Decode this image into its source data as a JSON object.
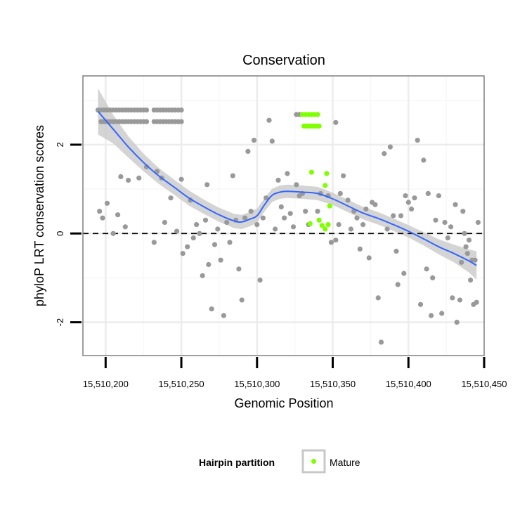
{
  "chart_data": {
    "type": "scatter",
    "title": "Conservation",
    "xlabel": "Genomic Position",
    "ylabel": "phyloP LRT conservation scores",
    "xlim": [
      15510185,
      15510450
    ],
    "ylim": [
      -2.75,
      3.55
    ],
    "xticks": [
      15510200,
      15510250,
      15510300,
      15510350,
      15510400,
      15510450
    ],
    "xtick_labels": [
      "15,510,200",
      "15,510,250",
      "15,510,300",
      "15,510,350",
      "15,510,400",
      "15,510,450"
    ],
    "yticks": [
      -2,
      0,
      2
    ],
    "ytick_labels": [
      "-2",
      "0",
      "2"
    ],
    "reference_line": {
      "y": 0,
      "style": "dashed"
    },
    "grid": true,
    "colors": {
      "other": "#999999",
      "mature": "#7fff00",
      "smooth": "#3366ff",
      "band": "#cccccc",
      "panel_border": "#7f7f7f"
    },
    "legend": {
      "title": "Hairpin partition",
      "position": "bottom",
      "entries": [
        {
          "label": "Mature",
          "color": "#7fff00"
        }
      ]
    },
    "series": [
      {
        "name": "Other",
        "color": "#999999",
        "points": [
          [
            15510195,
            2.78
          ],
          [
            15510197,
            2.78
          ],
          [
            15510199,
            2.78
          ],
          [
            15510201,
            2.78
          ],
          [
            15510203,
            2.78
          ],
          [
            15510205,
            2.78
          ],
          [
            15510207,
            2.78
          ],
          [
            15510209,
            2.78
          ],
          [
            15510211,
            2.78
          ],
          [
            15510213,
            2.78
          ],
          [
            15510215,
            2.78
          ],
          [
            15510217,
            2.78
          ],
          [
            15510219,
            2.78
          ],
          [
            15510221,
            2.78
          ],
          [
            15510223,
            2.78
          ],
          [
            15510225,
            2.78
          ],
          [
            15510227,
            2.78
          ],
          [
            15510232,
            2.78
          ],
          [
            15510234,
            2.78
          ],
          [
            15510236,
            2.78
          ],
          [
            15510238,
            2.78
          ],
          [
            15510240,
            2.78
          ],
          [
            15510242,
            2.78
          ],
          [
            15510244,
            2.78
          ],
          [
            15510246,
            2.78
          ],
          [
            15510248,
            2.78
          ],
          [
            15510250,
            2.78
          ],
          [
            15510197,
            2.52
          ],
          [
            15510199,
            2.52
          ],
          [
            15510201,
            2.52
          ],
          [
            15510203,
            2.52
          ],
          [
            15510205,
            2.52
          ],
          [
            15510207,
            2.52
          ],
          [
            15510209,
            2.52
          ],
          [
            15510211,
            2.52
          ],
          [
            15510213,
            2.52
          ],
          [
            15510215,
            2.52
          ],
          [
            15510217,
            2.52
          ],
          [
            15510219,
            2.52
          ],
          [
            15510221,
            2.52
          ],
          [
            15510223,
            2.52
          ],
          [
            15510225,
            2.52
          ],
          [
            15510227,
            2.52
          ],
          [
            15510232,
            2.52
          ],
          [
            15510234,
            2.52
          ],
          [
            15510236,
            2.52
          ],
          [
            15510238,
            2.52
          ],
          [
            15510240,
            2.52
          ],
          [
            15510242,
            2.52
          ],
          [
            15510244,
            2.52
          ],
          [
            15510246,
            2.52
          ],
          [
            15510248,
            2.52
          ],
          [
            15510250,
            2.52
          ],
          [
            15510326,
            2.68
          ],
          [
            15510328,
            2.68
          ],
          [
            15510352,
            2.5
          ],
          [
            15510196,
            0.5
          ],
          [
            15510198,
            0.35
          ],
          [
            15510201,
            0.68
          ],
          [
            15510205,
            0.0
          ],
          [
            15510208,
            0.42
          ],
          [
            15510210,
            1.28
          ],
          [
            15510213,
            0.15
          ],
          [
            15510215,
            1.2
          ],
          [
            15510222,
            1.25
          ],
          [
            15510227,
            1.5
          ],
          [
            15510232,
            -0.2
          ],
          [
            15510234,
            1.4
          ],
          [
            15510237,
            1.25
          ],
          [
            15510239,
            0.25
          ],
          [
            15510243,
            0.8
          ],
          [
            15510247,
            0.05
          ],
          [
            15510250,
            1.22
          ],
          [
            15510251,
            -0.45
          ],
          [
            15510254,
            -0.3
          ],
          [
            15510256,
            0.75
          ],
          [
            15510258,
            -0.1
          ],
          [
            15510260,
            0.2
          ],
          [
            15510262,
            0.0
          ],
          [
            15510264,
            -0.95
          ],
          [
            15510266,
            0.3
          ],
          [
            15510267,
            1.1
          ],
          [
            15510268,
            -0.7
          ],
          [
            15510270,
            -1.7
          ],
          [
            15510272,
            -0.25
          ],
          [
            15510274,
            0.1
          ],
          [
            15510276,
            -0.6
          ],
          [
            15510278,
            -1.85
          ],
          [
            15510280,
            0.25
          ],
          [
            15510282,
            -0.2
          ],
          [
            15510284,
            1.3
          ],
          [
            15510286,
            0.3
          ],
          [
            15510288,
            -0.8
          ],
          [
            15510290,
            -1.5
          ],
          [
            15510292,
            0.35
          ],
          [
            15510294,
            1.85
          ],
          [
            15510296,
            0.5
          ],
          [
            15510298,
            2.1
          ],
          [
            15510300,
            0.2
          ],
          [
            15510302,
            -1.05
          ],
          [
            15510304,
            0.35
          ],
          [
            15510306,
            0.8
          ],
          [
            15510308,
            2.55
          ],
          [
            15510310,
            2.08
          ],
          [
            15510312,
            0.1
          ],
          [
            15510314,
            1.2
          ],
          [
            15510316,
            0.6
          ],
          [
            15510318,
            0.35
          ],
          [
            15510320,
            1.35
          ],
          [
            15510322,
            0.45
          ],
          [
            15510324,
            0.15
          ],
          [
            15510326,
            1.1
          ],
          [
            15510328,
            0.85
          ],
          [
            15510330,
            0.9
          ],
          [
            15510332,
            0.5
          ],
          [
            15510334,
            0.2
          ],
          [
            15510340,
            0.5
          ],
          [
            15510342,
            0.9
          ],
          [
            15510347,
            0.85
          ],
          [
            15510349,
            -0.2
          ],
          [
            15510352,
            -0.15
          ],
          [
            15510354,
            0.2
          ],
          [
            15510355,
            0.9
          ],
          [
            15510357,
            1.3
          ],
          [
            15510360,
            0.75
          ],
          [
            15510362,
            0.1
          ],
          [
            15510364,
            0.5
          ],
          [
            15510366,
            0.35
          ],
          [
            15510368,
            -0.35
          ],
          [
            15510370,
            0.2
          ],
          [
            15510372,
            0.55
          ],
          [
            15510374,
            -0.55
          ],
          [
            15510376,
            0.7
          ],
          [
            15510378,
            0.65
          ],
          [
            15510380,
            -1.45
          ],
          [
            15510382,
            -2.45
          ],
          [
            15510384,
            1.8
          ],
          [
            15510386,
            0.1
          ],
          [
            15510388,
            1.95
          ],
          [
            15510390,
            0.4
          ],
          [
            15510392,
            -0.4
          ],
          [
            15510393,
            -1.15
          ],
          [
            15510395,
            0.4
          ],
          [
            15510397,
            -0.9
          ],
          [
            15510398,
            0.85
          ],
          [
            15510400,
            0.7
          ],
          [
            15510402,
            0.55
          ],
          [
            15510404,
            0.8
          ],
          [
            15510406,
            2.1
          ],
          [
            15510408,
            -1.6
          ],
          [
            15510410,
            1.65
          ],
          [
            15510412,
            -0.8
          ],
          [
            15510413,
            0.9
          ],
          [
            15510415,
            -1.85
          ],
          [
            15510416,
            -1.0
          ],
          [
            15510418,
            0.3
          ],
          [
            15510420,
            0.85
          ],
          [
            15510422,
            -1.8
          ],
          [
            15510424,
            0.25
          ],
          [
            15510426,
            -0.1
          ],
          [
            15510428,
            0.15
          ],
          [
            15510429,
            -1.45
          ],
          [
            15510431,
            0.65
          ],
          [
            15510432,
            -2.0
          ],
          [
            15510434,
            -1.5
          ],
          [
            15510436,
            0.5
          ],
          [
            15510437,
            0.0
          ],
          [
            15510439,
            -0.45
          ],
          [
            15510440,
            -0.15
          ],
          [
            15510441,
            -1.05
          ],
          [
            15510443,
            -1.6
          ],
          [
            15510444,
            -0.6
          ],
          [
            15510446,
            0.25
          ],
          [
            15510445,
            -1.55
          ],
          [
            15510442,
            -0.6
          ],
          [
            15510438,
            -0.3
          ],
          [
            15510435,
            -0.65
          ]
        ]
      },
      {
        "name": "Mature",
        "color": "#7fff00",
        "points": [
          [
            15510330,
            2.68
          ],
          [
            15510332,
            2.68
          ],
          [
            15510334,
            2.68
          ],
          [
            15510336,
            2.68
          ],
          [
            15510338,
            2.68
          ],
          [
            15510340,
            2.68
          ],
          [
            15510331,
            2.42
          ],
          [
            15510333,
            2.42
          ],
          [
            15510335,
            2.42
          ],
          [
            15510337,
            2.42
          ],
          [
            15510339,
            2.42
          ],
          [
            15510341,
            2.42
          ],
          [
            15510336,
            1.38
          ],
          [
            15510346,
            1.35
          ],
          [
            15510345,
            1.08
          ],
          [
            15510348,
            0.62
          ],
          [
            15510335,
            0.22
          ],
          [
            15510341,
            0.3
          ],
          [
            15510343,
            0.18
          ],
          [
            15510345,
            0.1
          ],
          [
            15510347,
            0.2
          ]
        ]
      }
    ],
    "smooth": {
      "x": [
        15510195,
        15510205,
        15510215,
        15510225,
        15510235,
        15510245,
        15510255,
        15510265,
        15510275,
        15510285,
        15510290,
        15510295,
        15510300,
        15510305,
        15510310,
        15510315,
        15510320,
        15510330,
        15510340,
        15510350,
        15510360,
        15510370,
        15510380,
        15510390,
        15510400,
        15510410,
        15510420,
        15510430,
        15510440,
        15510445
      ],
      "y": [
        2.75,
        2.35,
        1.95,
        1.6,
        1.3,
        1.05,
        0.8,
        0.6,
        0.42,
        0.28,
        0.26,
        0.32,
        0.4,
        0.65,
        0.86,
        0.93,
        0.95,
        0.93,
        0.9,
        0.78,
        0.62,
        0.46,
        0.34,
        0.2,
        0.05,
        -0.12,
        -0.3,
        -0.45,
        -0.62,
        -0.72
      ],
      "band_halfwidth": [
        0.52,
        0.32,
        0.24,
        0.2,
        0.18,
        0.17,
        0.17,
        0.16,
        0.16,
        0.16,
        0.16,
        0.16,
        0.16,
        0.15,
        0.15,
        0.15,
        0.15,
        0.15,
        0.15,
        0.14,
        0.14,
        0.14,
        0.14,
        0.14,
        0.14,
        0.15,
        0.17,
        0.2,
        0.26,
        0.32
      ]
    }
  }
}
